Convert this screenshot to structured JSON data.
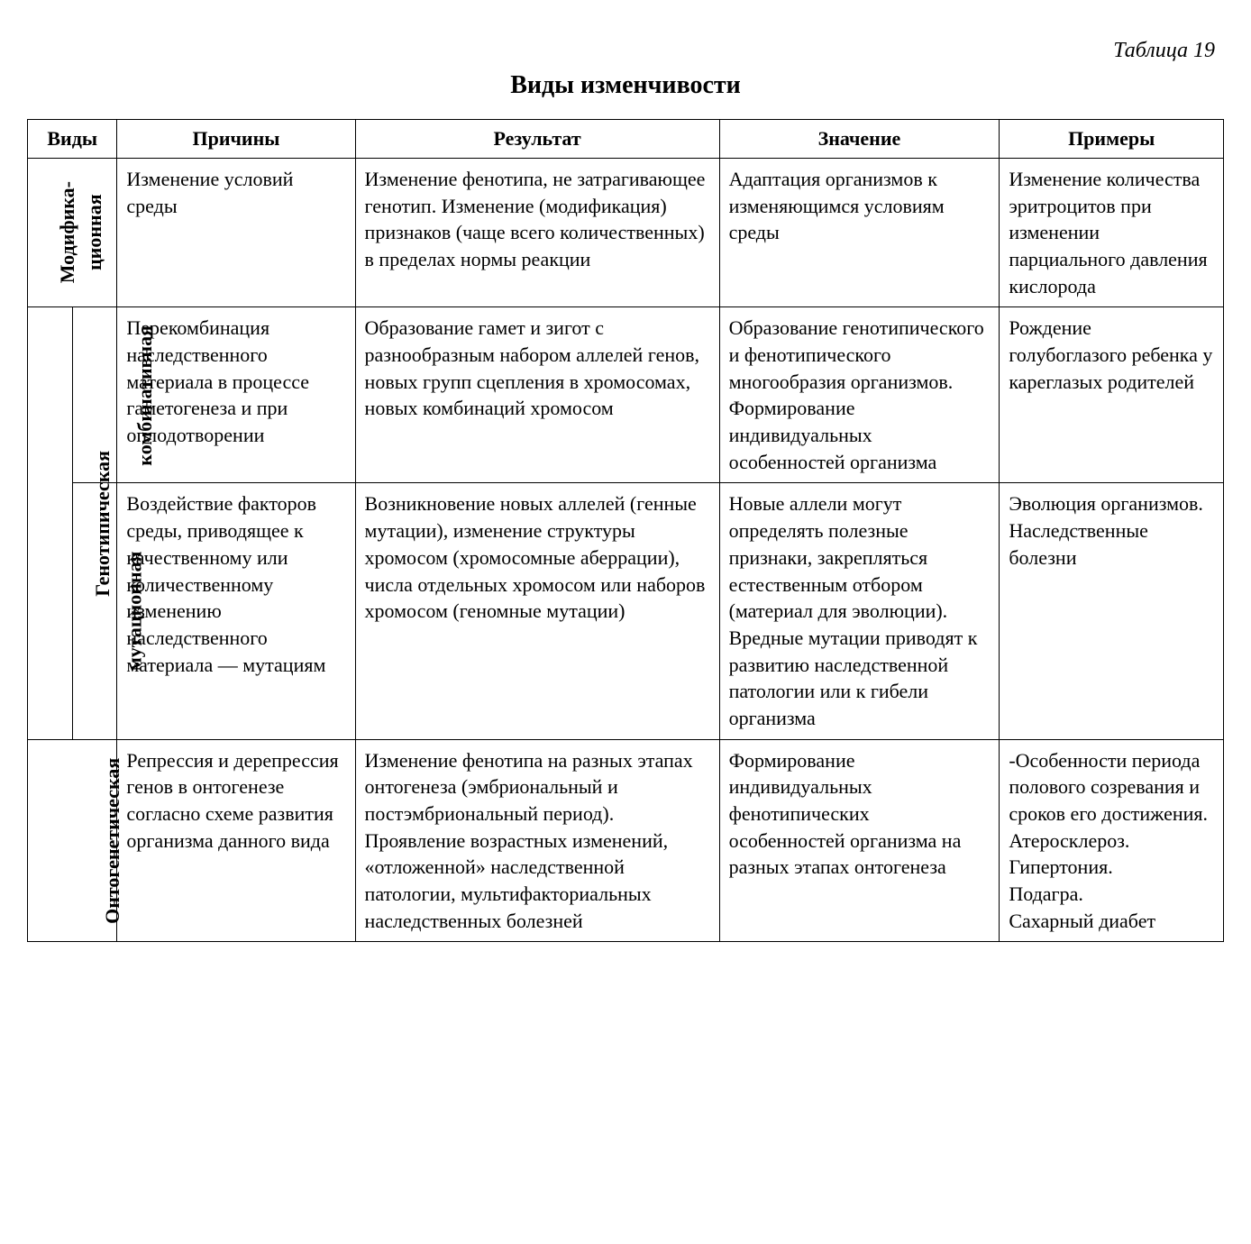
{
  "tableLabel": "Таблица 19",
  "title": "Виды изменчивости",
  "headers": {
    "kinds": "Виды",
    "causes": "Причины",
    "result": "Результат",
    "meaning": "Значение",
    "examples": "Примеры"
  },
  "rows": {
    "modif": {
      "kind": "Модифика-\nционная",
      "causes": "Изменение условий среды",
      "result": "Изменение фенотипа, не затрагивающее генотип. Изменение (модификация) признаков (чаще всего количественных) в пределах нормы реакции",
      "meaning": "Адаптация организмов к изменяющимся условиям среды",
      "examples": "Изменение количества эритроцитов при изменении парциального давления кислорода"
    },
    "genotypic": {
      "kind": "Генотипическая",
      "comb": {
        "sub": "комбинативная",
        "causes": "Перекомбинация наследственного материала в процессе гаметогенеза и при оплодотворении",
        "result": "Образование гамет и зигот с разнообразным набором аллелей генов, новых групп сцепления в хромосомах, новых комбинаций хромосом",
        "meaning": "Образование генотипического и фенотипического многообразия организмов. Формирование индивидуальных особенностей организма",
        "examples": "Рождение голубоглазого ребенка у кареглазых родителей"
      },
      "mut": {
        "sub": "мутационная",
        "causes": "Воздействие факторов среды, приводящее к качественному или количественному изменению наследственного материала — мутациям",
        "result": "Возникновение новых аллелей (генные мутации), изменение структуры хромосом (хромосомные аберрации), числа отдельных хромосом или наборов хромосом (геномные мутации)",
        "meaning": "Новые аллели могут определять полезные признаки, закрепляться естественным отбором (материал для эволюции). Вредные мутации приводят к развитию наследственной патологии или к гибели организма",
        "examples": "Эволюция организмов.\nНаследственные болезни"
      }
    },
    "onto": {
      "kind": "Онтогенетическая",
      "causes": "Репрессия и дерепрессия генов в онтогенезе согласно схеме развития организма данного вида",
      "result": "Изменение фенотипа на разных этапах онтогенеза (эмбриональный и постэмбриональный период). Проявление возрастных изменений, «отложенной» наследственной патологии, мультифакториальных наследственных болезней",
      "meaning": "Формирование индивидуальных фенотипических особенностей организма на разных этапах онтогенеза",
      "examples": "-Особенности периода полового созревания и сроков его достижения.\nАтеросклероз.\nГипертония.\nПодагра.\nСахарный диабет"
    }
  },
  "style": {
    "background": "#ffffff",
    "text": "#000000",
    "border": "#000000",
    "fontFamily": "Georgia, Times New Roman, serif",
    "baseFontSize": 22,
    "titleFontSize": 28,
    "labelFontSize": 24
  }
}
